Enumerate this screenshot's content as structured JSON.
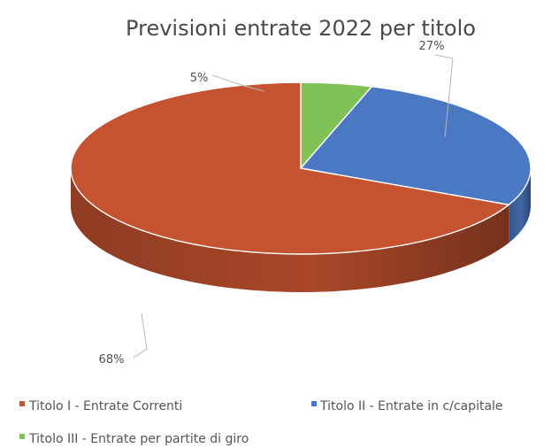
{
  "chart_data": {
    "type": "pie",
    "title": "Previsioni entrate 2022 per titolo",
    "categories": [
      "Titolo I - Entrate Correnti",
      "Titolo II - Entrate in c/capitale",
      "Titolo III - Entrate per partite di giro"
    ],
    "values": [
      68,
      27,
      5
    ],
    "labels": [
      "68%",
      "27%",
      "5%"
    ],
    "colors": [
      "#c5532f",
      "#4a78c2",
      "#80c256"
    ],
    "legend_position": "bottom",
    "style": "3d"
  }
}
